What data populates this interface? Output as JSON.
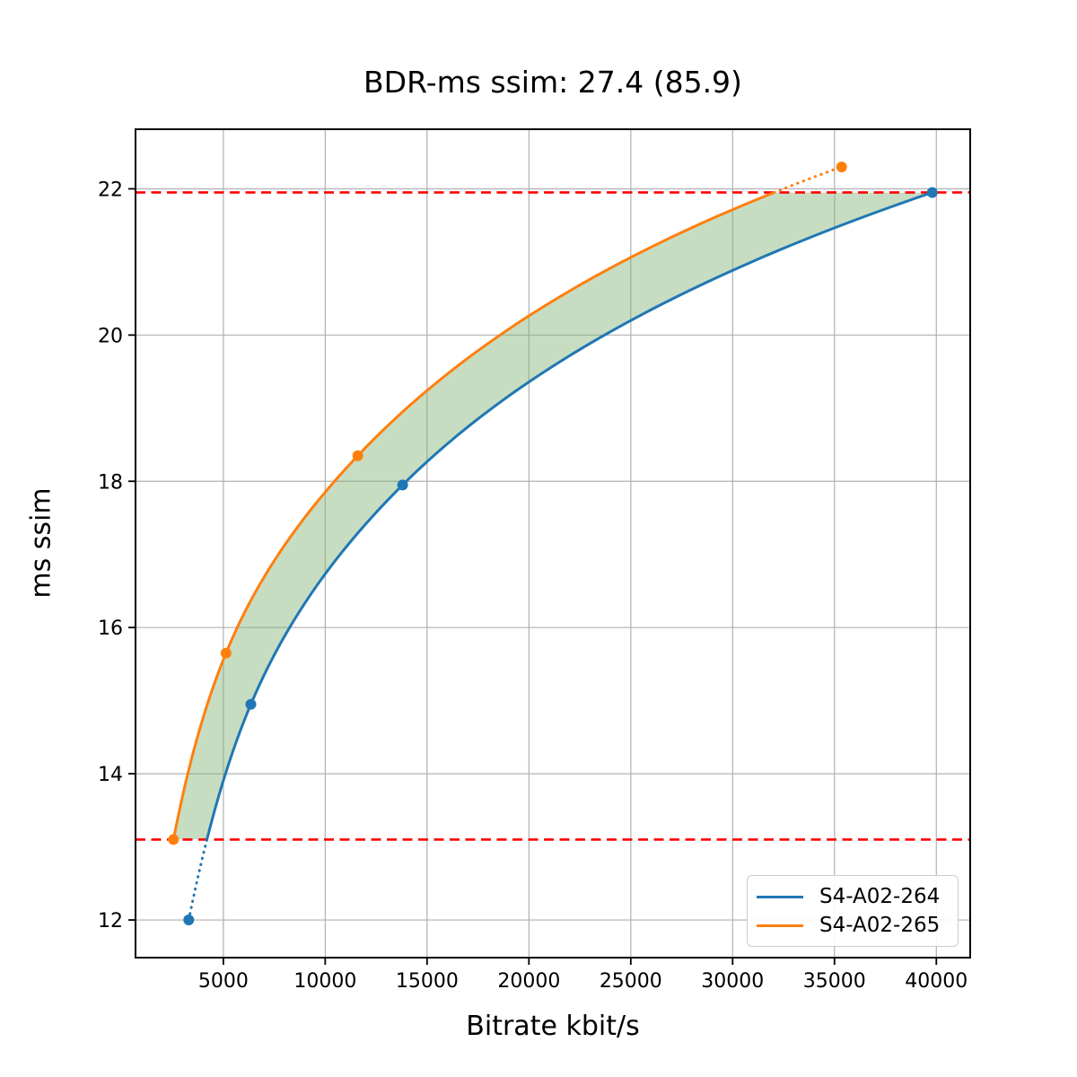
{
  "title": "BDR-ms ssim: 27.4 (85.9)",
  "chart_data": {
    "type": "line",
    "title": "BDR-ms ssim: 27.4 (85.9)",
    "xlabel": "Bitrate kbit/s",
    "ylabel": "ms ssim",
    "xlim": [
      688,
      41662
    ],
    "ylim": [
      11.485,
      22.815
    ],
    "xticks": [
      5000,
      10000,
      15000,
      20000,
      25000,
      30000,
      35000,
      40000
    ],
    "yticks": [
      12,
      14,
      16,
      18,
      20,
      22
    ],
    "grid": true,
    "grid_color": "#b0b0b0",
    "legend_position": "lower right",
    "series": [
      {
        "name": "S4-A02-264",
        "color": "#1f77b4",
        "points_bitrate": [
          3300,
          6350,
          13800,
          39800
        ],
        "points_quality": [
          12.0,
          14.95,
          17.95,
          21.95
        ]
      },
      {
        "name": "S4-A02-265",
        "color": "#ff7f0e",
        "points_bitrate": [
          2550,
          5130,
          11600,
          35350
        ],
        "points_quality": [
          13.1,
          15.65,
          18.35,
          22.3
        ]
      }
    ],
    "overlap_quality_range": [
      13.1,
      21.95
    ],
    "hlines": {
      "values": [
        13.1,
        21.95
      ],
      "color": "#ff0000",
      "style": "dashed"
    },
    "fill_between": {
      "color": "#82b478",
      "opacity": 0.45,
      "quality_range": [
        13.1,
        21.95
      ]
    }
  }
}
